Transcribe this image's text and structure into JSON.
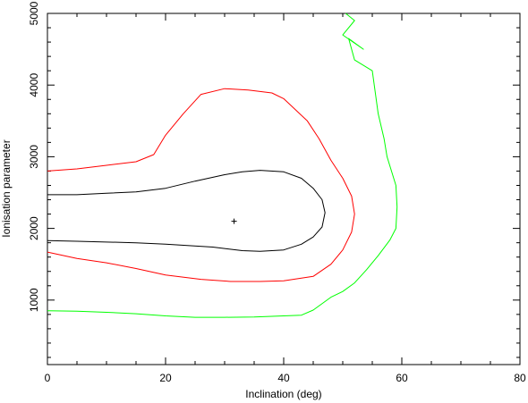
{
  "chart_data": {
    "type": "line",
    "title": "",
    "xlabel": "Inclination (deg)",
    "ylabel": "Ionisation parameter",
    "xlim": [
      0,
      80
    ],
    "ylim": [
      100,
      5000
    ],
    "x_ticks": [
      0,
      20,
      40,
      60,
      80
    ],
    "y_ticks": [
      1000,
      2000,
      3000,
      4000,
      5000
    ],
    "grid": false,
    "best_fit": {
      "marker": "+",
      "x": 31.6,
      "y": 2100
    },
    "series": [
      {
        "color": "#000000",
        "points": [
          [
            0,
            2470
          ],
          [
            5,
            2470
          ],
          [
            10,
            2490
          ],
          [
            15,
            2510
          ],
          [
            20,
            2560
          ],
          [
            25,
            2660
          ],
          [
            30,
            2750
          ],
          [
            33,
            2790
          ],
          [
            36,
            2810
          ],
          [
            40,
            2790
          ],
          [
            43,
            2700
          ],
          [
            45,
            2560
          ],
          [
            46.5,
            2400
          ],
          [
            47,
            2220
          ],
          [
            46.5,
            2020
          ],
          [
            45,
            1880
          ],
          [
            43,
            1780
          ],
          [
            40,
            1700
          ],
          [
            36,
            1680
          ],
          [
            33,
            1690
          ],
          [
            28,
            1740
          ],
          [
            20,
            1780
          ],
          [
            15,
            1800
          ],
          [
            5,
            1820
          ],
          [
            0,
            1830
          ]
        ]
      },
      {
        "color": "#ff0000",
        "points": [
          [
            0,
            2800
          ],
          [
            5,
            2830
          ],
          [
            10,
            2880
          ],
          [
            15,
            2930
          ],
          [
            18,
            3030
          ],
          [
            20,
            3300
          ],
          [
            23,
            3600
          ],
          [
            26,
            3870
          ],
          [
            30,
            3950
          ],
          [
            34,
            3930
          ],
          [
            38,
            3890
          ],
          [
            40,
            3810
          ],
          [
            44,
            3500
          ],
          [
            46,
            3250
          ],
          [
            48,
            2950
          ],
          [
            50,
            2700
          ],
          [
            51.5,
            2450
          ],
          [
            52,
            2200
          ],
          [
            51.5,
            1950
          ],
          [
            50,
            1700
          ],
          [
            48,
            1500
          ],
          [
            45,
            1330
          ],
          [
            40,
            1270
          ],
          [
            36,
            1260
          ],
          [
            31,
            1260
          ],
          [
            26,
            1290
          ],
          [
            20,
            1350
          ],
          [
            15,
            1440
          ],
          [
            10,
            1520
          ],
          [
            5,
            1580
          ],
          [
            0,
            1670
          ]
        ]
      },
      {
        "color": "#00ff00",
        "points": [
          [
            0,
            850
          ],
          [
            5,
            845
          ],
          [
            10,
            830
          ],
          [
            15,
            810
          ],
          [
            20,
            780
          ],
          [
            25,
            760
          ],
          [
            30,
            760
          ],
          [
            35,
            765
          ],
          [
            40,
            780
          ],
          [
            43,
            790
          ],
          [
            45,
            860
          ],
          [
            48,
            1040
          ],
          [
            50,
            1120
          ],
          [
            52,
            1240
          ],
          [
            54,
            1420
          ],
          [
            56,
            1620
          ],
          [
            58,
            1840
          ],
          [
            59,
            2000
          ],
          [
            59.2,
            2300
          ],
          [
            59,
            2600
          ],
          [
            57.5,
            3000
          ],
          [
            57,
            3250
          ],
          [
            56,
            3600
          ],
          [
            55,
            4200
          ],
          [
            52,
            4350
          ],
          [
            51,
            4650
          ],
          [
            53.5,
            4500
          ],
          [
            50,
            4700
          ],
          [
            52,
            4900
          ],
          [
            50.5,
            5000
          ]
        ]
      }
    ]
  }
}
